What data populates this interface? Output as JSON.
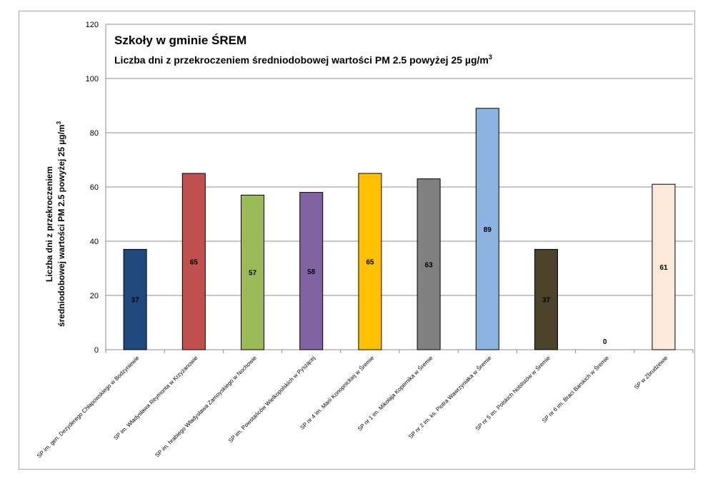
{
  "chart_data": {
    "type": "bar",
    "title": "Szkoły w gminie ŚREM",
    "subtitle": "Liczba dni z przekroczeniem średniodobowej wartości PM 2.5 powyżej 25 µg/m",
    "subtitle_superscript": "3",
    "ylabel_line1": "Liczba dni z przekroczeniem",
    "ylabel_line2": "średniodobowej wartości PM 2.5 powyżej 25 µg/m",
    "ylabel_superscript": "3",
    "xlabel": "",
    "ylim": [
      0,
      120
    ],
    "yticks": [
      0,
      20,
      40,
      60,
      80,
      100,
      120
    ],
    "grid": true,
    "categories": [
      "SP im. gen. Dezyderego Chłapowskiego w Bodzyniewie",
      "SP im. Władysława Reymonta w Krzyżanowie",
      "SP im. hrabiego Władysława Zamoyskiego w Nochowie",
      "SP im. Powstańców Wielkopolskich w Pyszącej",
      "SP nr 4 im. Marii Konopnickiej w Śremie",
      "SP nr 1 im. Mikołaja Kopernika w Śremie",
      "SP nr 2 im. ks. Piotra Wawrzyniaka w Śremie",
      "SP nr 5 im. Polskich Noblistów w Śremie",
      "SP nr 6 im. Braci Barskich w Śremie",
      "SP w Zbrudzewie"
    ],
    "values": [
      37,
      65,
      57,
      58,
      65,
      63,
      89,
      37,
      0,
      61
    ],
    "colors": [
      "#1f497d",
      "#c0504d",
      "#9bbb59",
      "#8064a2",
      "#ffc000",
      "#808080",
      "#8db3e2",
      "#4a4229",
      "#ffffff",
      "#fde9d9"
    ],
    "data_labels": [
      "37",
      "65",
      "57",
      "58",
      "65",
      "63",
      "89",
      "37",
      "0",
      "61"
    ]
  }
}
